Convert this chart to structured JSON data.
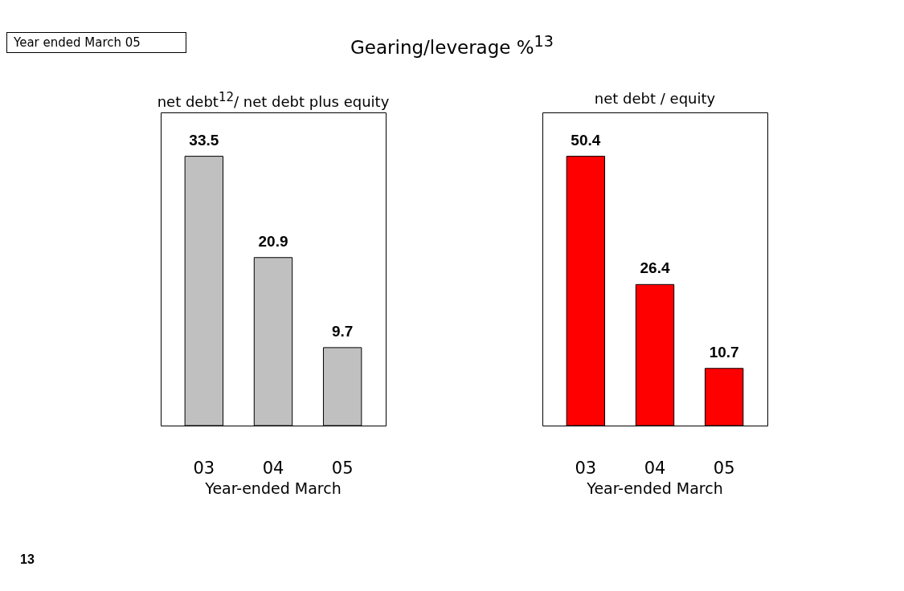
{
  "chart_data": [
    {
      "type": "bar",
      "title": "net debt$^{12}$/ net debt plus equity",
      "categories": [
        "03",
        "04",
        "05"
      ],
      "values": [
        33.5,
        20.9,
        9.7
      ],
      "color": "#c0c0c0",
      "data_labels": true,
      "xlabel": "Year-ended March",
      "annotations": [
        "Year ended March 05",
        "Gearing/leverage %$^{13}$",
        "13"
      ]
    },
    {
      "type": "bar",
      "title": "net debt / equity",
      "categories": [
        "03",
        "04",
        "05"
      ],
      "values": [
        50.4,
        26.4,
        10.7
      ],
      "color": "#ff0000",
      "data_labels": true,
      "xlabel": "Year-ended March"
    }
  ]
}
